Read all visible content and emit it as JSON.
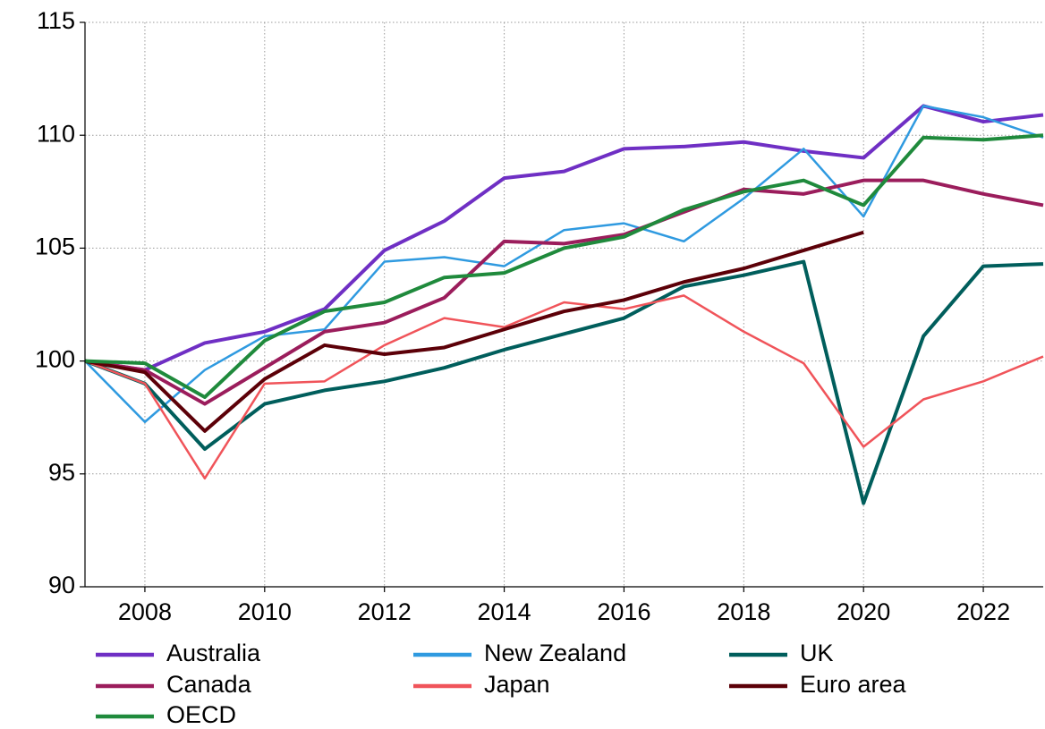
{
  "chart_data": {
    "type": "line",
    "x": [
      2007,
      2008,
      2009,
      2010,
      2011,
      2012,
      2013,
      2014,
      2015,
      2016,
      2017,
      2018,
      2019,
      2020,
      2021,
      2022,
      2023
    ],
    "xlim": [
      2007,
      2023
    ],
    "xticks": [
      2008,
      2010,
      2012,
      2014,
      2016,
      2018,
      2020,
      2022
    ],
    "ylim": [
      90,
      115
    ],
    "yticks": [
      90,
      95,
      100,
      105,
      110,
      115
    ],
    "grid": true,
    "series": [
      {
        "name": "Australia",
        "color": "#6f2fc4",
        "values": [
          100,
          99.6,
          100.8,
          101.3,
          102.3,
          104.9,
          106.2,
          108.1,
          108.4,
          109.4,
          109.5,
          109.7,
          109.3,
          109.0,
          111.3,
          110.6,
          110.9
        ]
      },
      {
        "name": "New Zealand",
        "color": "#2f9ae0",
        "values": [
          100,
          97.3,
          99.6,
          101.1,
          101.4,
          104.4,
          104.6,
          104.2,
          105.8,
          106.1,
          105.3,
          107.2,
          109.4,
          106.4,
          111.3,
          110.8,
          109.9
        ]
      },
      {
        "name": "UK",
        "color": "#005e5c",
        "values": [
          100,
          99.0,
          96.1,
          98.1,
          98.7,
          99.1,
          99.7,
          100.5,
          101.2,
          101.9,
          103.3,
          103.8,
          104.4,
          93.7,
          101.1,
          104.2,
          104.3
        ]
      },
      {
        "name": "Canada",
        "color": "#9b1d5c",
        "values": [
          100,
          99.6,
          98.1,
          99.7,
          101.3,
          101.7,
          102.8,
          105.3,
          105.2,
          105.6,
          106.6,
          107.6,
          107.4,
          108.0,
          108.0,
          107.4,
          106.9
        ]
      },
      {
        "name": "Japan",
        "color": "#f0545a",
        "values": [
          100,
          99.0,
          94.8,
          99.0,
          99.1,
          100.7,
          101.9,
          101.5,
          102.6,
          102.3,
          102.9,
          101.3,
          99.9,
          96.2,
          98.3,
          99.1,
          100.2
        ]
      },
      {
        "name": "Euro area",
        "color": "#5c0008",
        "values": [
          100,
          99.5,
          96.9,
          99.2,
          100.7,
          100.3,
          100.6,
          101.4,
          102.2,
          102.7,
          103.5,
          104.1,
          104.9,
          105.7,
          null,
          null,
          null
        ]
      },
      {
        "name": "OECD",
        "color": "#1f8a3c",
        "values": [
          100,
          99.9,
          98.4,
          100.9,
          102.2,
          102.6,
          103.7,
          103.9,
          105.0,
          105.5,
          106.7,
          107.5,
          108.0,
          106.9,
          109.9,
          109.8,
          110.0
        ]
      }
    ]
  }
}
